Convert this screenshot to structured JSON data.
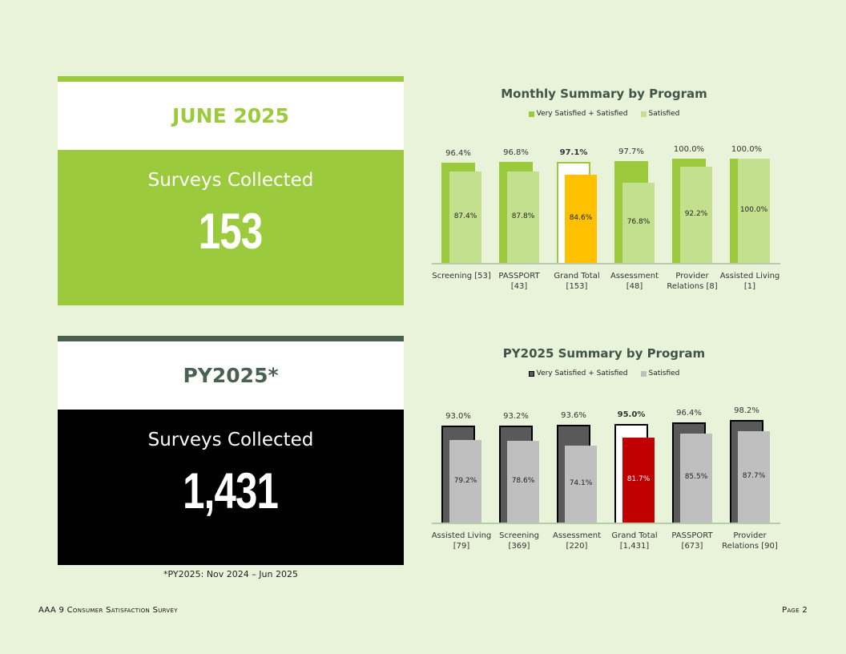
{
  "month_card": {
    "title": "JUNE 2025",
    "label": "Surveys Collected",
    "count": "153"
  },
  "py_card": {
    "title": "PY2025*",
    "label": "Surveys Collected",
    "count": "1,431"
  },
  "footnote": "*PY2025: Nov 2024 – Jun 2025",
  "footer": {
    "left": "AAA 9 Consumer Satisfaction Survey",
    "right": "Page 2"
  },
  "colors": {
    "month_primary": "#9bcb3c",
    "month_secondary": "#c3e08e",
    "month_highlight": "#ffc000",
    "py_primary": "#595959",
    "py_secondary": "#bfbfbf",
    "py_highlight": "#c00000"
  },
  "chart_data": [
    {
      "type": "bar",
      "title": "Monthly Summary by Program",
      "legend": [
        "Very Satisfied + Satisfied",
        "Satisfied"
      ],
      "categories": [
        "Screening [53]",
        "PASSPORT [43]",
        "Grand Total [153]",
        "Assessment [48]",
        "Provider Relations [8]",
        "Assisted Living [1]"
      ],
      "category_lines": [
        [
          "Screening [53]"
        ],
        [
          "PASSPORT",
          "[43]"
        ],
        [
          "Grand Total",
          "[153]"
        ],
        [
          "Assessment",
          "[48]"
        ],
        [
          "Provider",
          "Relations [8]"
        ],
        [
          "Assisted Living",
          "[1]"
        ]
      ],
      "series": [
        {
          "name": "Very Satisfied + Satisfied",
          "values": [
            96.4,
            96.8,
            97.1,
            97.7,
            100.0,
            100.0
          ],
          "labels": [
            "96.4%",
            "96.8%",
            "97.1%",
            "97.7%",
            "100.0%",
            "100.0%"
          ]
        },
        {
          "name": "Satisfied",
          "values": [
            87.4,
            87.8,
            84.6,
            76.8,
            92.2,
            100.0
          ],
          "labels": [
            "87.4%",
            "87.8%",
            "84.6%",
            "76.8%",
            "92.2%",
            "100.0%"
          ]
        }
      ],
      "highlight_index": 2
    },
    {
      "type": "bar",
      "title": "PY2025 Summary by Program",
      "legend": [
        "Very Satisfied + Satisfied",
        "Satisfied"
      ],
      "categories": [
        "Assisted Living [79]",
        "Screening [369]",
        "Assessment [220]",
        "Grand Total [1,431]",
        "PASSPORT [673]",
        "Provider Relations [90]"
      ],
      "category_lines": [
        [
          "Assisted Living",
          "[79]"
        ],
        [
          "Screening",
          "[369]"
        ],
        [
          "Assessment",
          "[220]"
        ],
        [
          "Grand Total",
          "[1,431]"
        ],
        [
          "PASSPORT",
          "[673]"
        ],
        [
          "Provider",
          "Relations [90]"
        ]
      ],
      "series": [
        {
          "name": "Very Satisfied + Satisfied",
          "values": [
            93.0,
            93.2,
            93.6,
            95.0,
            96.4,
            98.2
          ],
          "labels": [
            "93.0%",
            "93.2%",
            "93.6%",
            "95.0%",
            "96.4%",
            "98.2%"
          ]
        },
        {
          "name": "Satisfied",
          "values": [
            79.2,
            78.6,
            74.1,
            81.7,
            85.5,
            87.7
          ],
          "labels": [
            "79.2%",
            "78.6%",
            "74.1%",
            "81.7%",
            "85.5%",
            "87.7%"
          ]
        }
      ],
      "highlight_index": 3
    }
  ]
}
